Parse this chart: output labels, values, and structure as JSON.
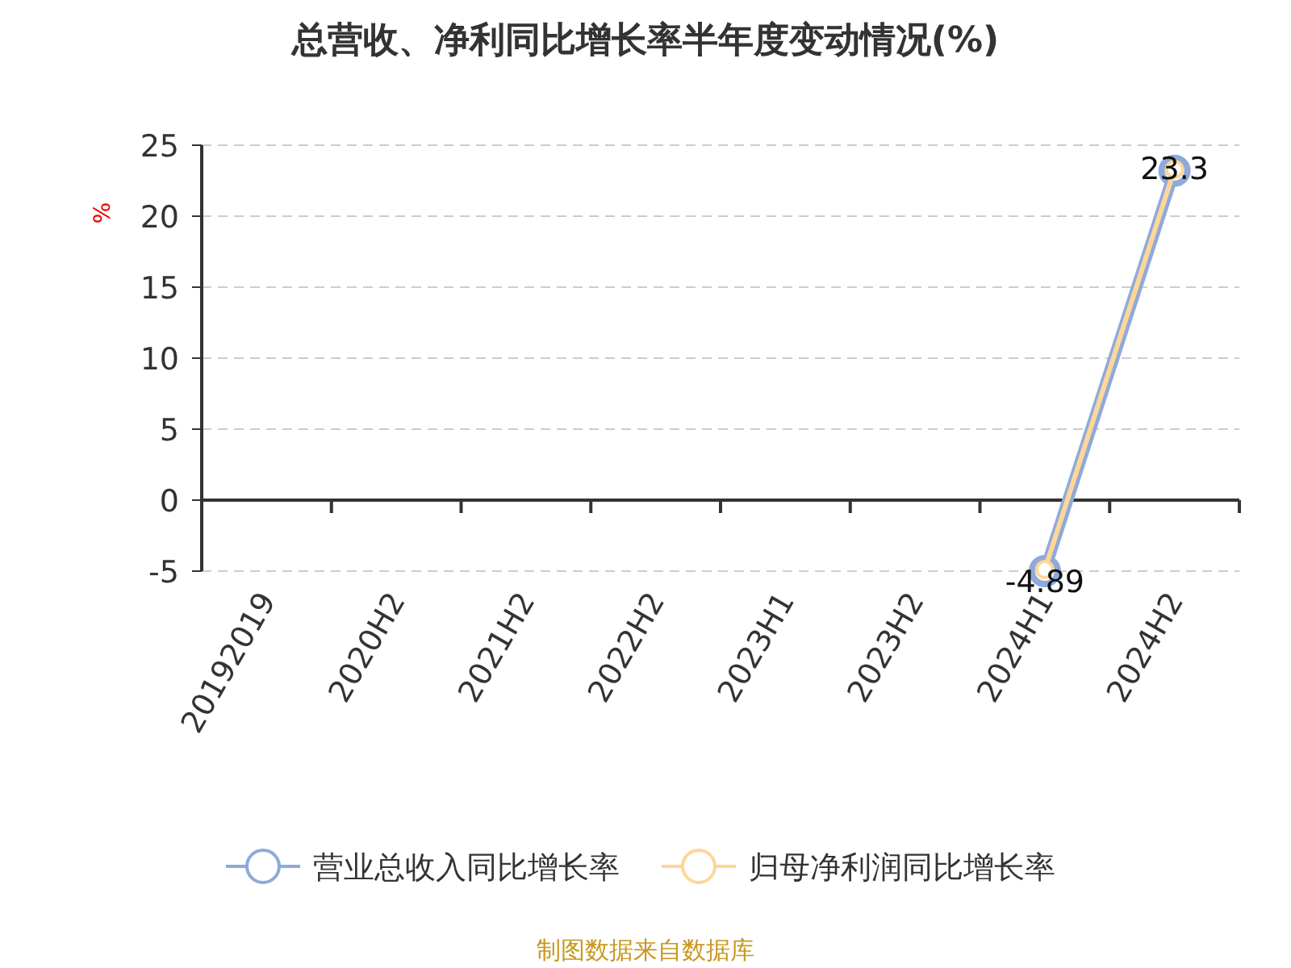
{
  "chart_data": {
    "type": "line",
    "title": "总营收、净利同比增长率半年度变动情况(%)",
    "ylabel": "%",
    "categories": [
      "20192019",
      "2020H2",
      "2021H2",
      "2022H2",
      "2023H1",
      "2023H2",
      "2024H1",
      "2024H2"
    ],
    "series": [
      {
        "name": "营业总收入同比增长率",
        "color": "#8eaadb",
        "values": [
          null,
          null,
          null,
          null,
          null,
          null,
          -5.0,
          23.2
        ]
      },
      {
        "name": "归母净利润同比增长率",
        "color": "#ffd699",
        "values": [
          null,
          null,
          null,
          null,
          null,
          null,
          -4.89,
          23.3
        ],
        "value_labels": [
          null,
          null,
          null,
          null,
          null,
          null,
          "-4.89",
          "23.3"
        ]
      }
    ],
    "ylim": [
      -5,
      25
    ],
    "yticks": [
      -5,
      0,
      5,
      10,
      15,
      20,
      25
    ],
    "grid": "y",
    "legend": "bottom",
    "marker": "circle",
    "line_style": "solid",
    "annotations": [
      "制图数据来自数据库"
    ]
  }
}
